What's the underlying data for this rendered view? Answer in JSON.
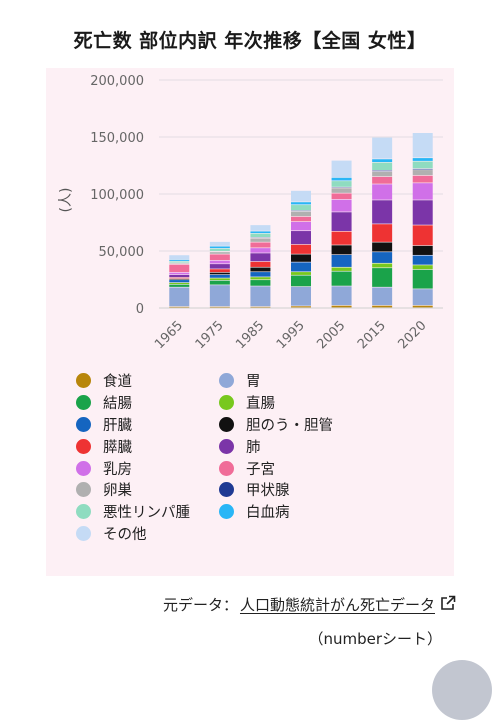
{
  "title": "死亡数 部位内訳 年次推移【全国 女性】",
  "chart_data": {
    "type": "bar",
    "stacked": true,
    "ylabel": "(人)",
    "ylim": [
      0,
      200000
    ],
    "yticks": [
      0,
      50000,
      100000,
      150000,
      200000
    ],
    "ytick_labels": [
      "0",
      "50,000",
      "100,000",
      "150,000",
      "200,000"
    ],
    "grid": true,
    "legend_position": "bottom",
    "categories": [
      "1965",
      "1975",
      "1985",
      "1995",
      "2005",
      "2015",
      "2020"
    ],
    "series": [
      {
        "name": "食道",
        "color": "#b8860b",
        "values": [
          1000,
          1000,
          1000,
          1500,
          2000,
          2000,
          2000
        ]
      },
      {
        "name": "胃",
        "color": "#8fa8d8",
        "values": [
          17000,
          19000,
          18000,
          17000,
          17000,
          16000,
          14500
        ]
      },
      {
        "name": "結腸",
        "color": "#1aa34a",
        "values": [
          2500,
          4000,
          5500,
          10000,
          13000,
          17000,
          17000
        ]
      },
      {
        "name": "直腸",
        "color": "#78c81e",
        "values": [
          1500,
          2000,
          2500,
          3000,
          3500,
          4000,
          4000
        ]
      },
      {
        "name": "肝臓",
        "color": "#1565c0",
        "values": [
          2500,
          3000,
          4500,
          8500,
          11000,
          10000,
          8500
        ]
      },
      {
        "name": "胆のう・胆管",
        "color": "#111111",
        "values": [
          1000,
          2000,
          4000,
          7000,
          8500,
          8500,
          8500
        ]
      },
      {
        "name": "膵臓",
        "color": "#ee3333",
        "values": [
          1000,
          3000,
          5000,
          8500,
          12000,
          16000,
          18000
        ]
      },
      {
        "name": "肺",
        "color": "#7b35a8",
        "values": [
          2500,
          4500,
          7500,
          12000,
          17000,
          21000,
          22000
        ]
      },
      {
        "name": "乳房",
        "color": "#d070e8",
        "values": [
          2000,
          3000,
          4500,
          8000,
          11000,
          14000,
          15000
        ]
      },
      {
        "name": "子宮",
        "color": "#f06c98",
        "values": [
          7000,
          5500,
          5000,
          4500,
          5500,
          6500,
          6500
        ]
      },
      {
        "name": "卵巣",
        "color": "#b0b0b0",
        "values": [
          1000,
          2000,
          3500,
          4500,
          4500,
          4500,
          5000
        ]
      },
      {
        "name": "甲状腺",
        "color": "#1f3a93",
        "values": [
          300,
          500,
          700,
          800,
          800,
          1000,
          1000
        ]
      },
      {
        "name": "悪性リンパ腫",
        "color": "#8fdcc0",
        "values": [
          1500,
          2500,
          3500,
          5000,
          5500,
          7000,
          6500
        ]
      },
      {
        "name": "白血病",
        "color": "#29b6f6",
        "values": [
          1500,
          2000,
          2000,
          2500,
          3000,
          3000,
          3000
        ]
      },
      {
        "name": "その他",
        "color": "#c5dbf5",
        "values": [
          4000,
          4000,
          5500,
          10000,
          15000,
          19000,
          22000
        ]
      }
    ]
  },
  "legend": {
    "left": [
      {
        "label": "食道",
        "color": "#b8860b"
      },
      {
        "label": "結腸",
        "color": "#1aa34a"
      },
      {
        "label": "肝臓",
        "color": "#1565c0"
      },
      {
        "label": "膵臓",
        "color": "#ee3333"
      },
      {
        "label": "乳房",
        "color": "#d070e8"
      },
      {
        "label": "卵巣",
        "color": "#b0b0b0"
      },
      {
        "label": "悪性リンパ腫",
        "color": "#8fdcc0"
      },
      {
        "label": "その他",
        "color": "#c5dbf5"
      }
    ],
    "right": [
      {
        "label": "胃",
        "color": "#8fa8d8"
      },
      {
        "label": "直腸",
        "color": "#78c81e"
      },
      {
        "label": "胆のう・胆管",
        "color": "#111111"
      },
      {
        "label": "肺",
        "color": "#7b35a8"
      },
      {
        "label": "子宮",
        "color": "#f06c98"
      },
      {
        "label": "甲状腺",
        "color": "#1f3a93"
      },
      {
        "label": "白血病",
        "color": "#29b6f6"
      }
    ]
  },
  "source": {
    "prefix": "元データ：",
    "link_text": "人口動態統計がん死亡データ",
    "link_icon": "external-link-icon"
  },
  "credit": "（numberシート）"
}
